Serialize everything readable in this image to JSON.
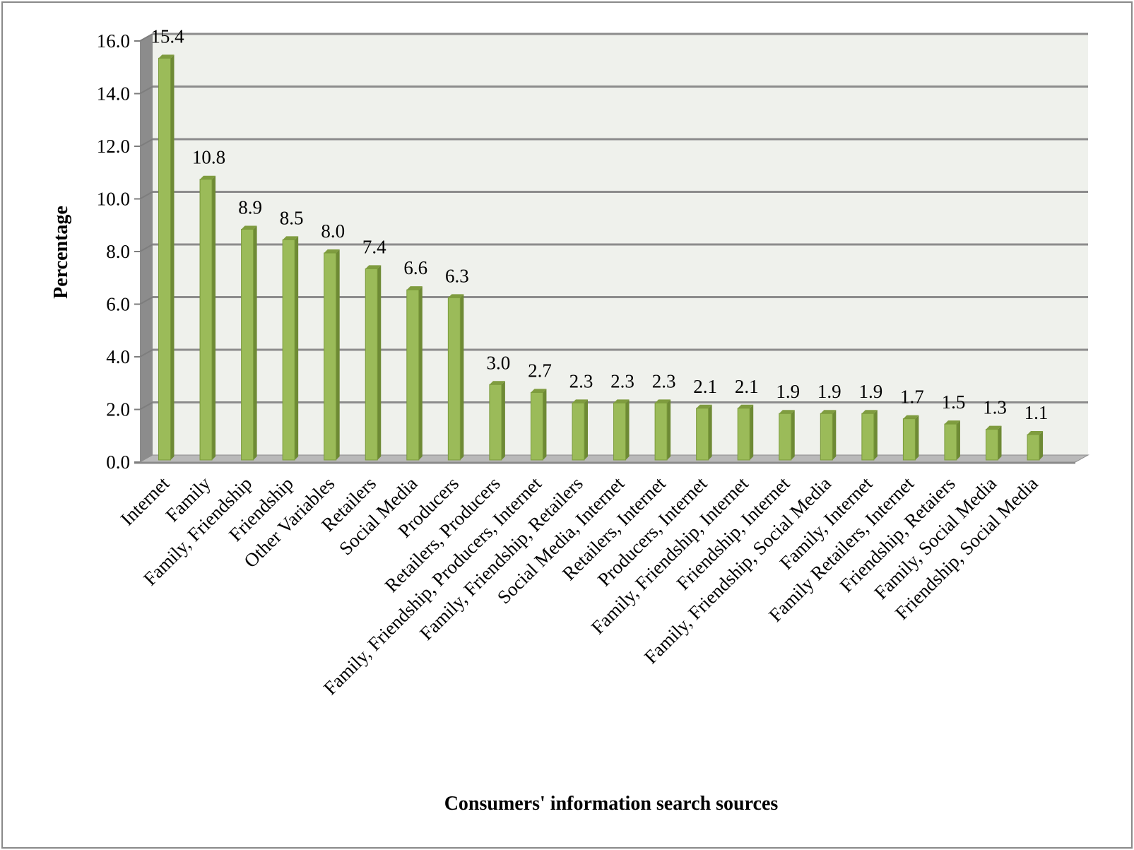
{
  "chart_data": {
    "type": "bar",
    "title": "",
    "xlabel": "Consumers' information search sources",
    "ylabel": "Percentage",
    "ylim": [
      0,
      16
    ],
    "yticks": [
      "0.0",
      "2.0",
      "4.0",
      "6.0",
      "8.0",
      "10.0",
      "12.0",
      "14.0",
      "16.0"
    ],
    "grid": true,
    "legend": null,
    "style": "3d-column",
    "bar_color": "#9bbb59",
    "bar_shadow_color": "#6e8a35",
    "wall_color": "#eff1ec",
    "side_wall_color": "#8c8c8c",
    "categories": [
      "Internet",
      "Family",
      "Family, Friendship",
      "Friendship",
      "Other Variables",
      "Retailers",
      "Social Media",
      "Producers",
      "Retailers, Producers",
      "Family, Friendship, Producers, Internet",
      "Family, Friendship, Retailers",
      "Social Media, Internet",
      "Retailers, Internet",
      "Producers, Internet",
      "Family, Friendship, Internet",
      "Friendship, Internet",
      "Family, Friendship, Social Media",
      "Family, Internet",
      "Family Retailers, Internet",
      "Friendship, Retaiers",
      "Family, Social Media",
      "Friendship, Social Media"
    ],
    "values": [
      15.4,
      10.8,
      8.9,
      8.5,
      8.0,
      7.4,
      6.6,
      6.3,
      3.0,
      2.7,
      2.3,
      2.3,
      2.3,
      2.1,
      2.1,
      1.9,
      1.9,
      1.9,
      1.7,
      1.5,
      1.3,
      1.1
    ],
    "data_labels": [
      "15.4",
      "10.8",
      "8.9",
      "8.5",
      "8.0",
      "7.4",
      "6.6",
      "6.3",
      "3.0",
      "2.7",
      "2.3",
      "2.3",
      "2.3",
      "2.1",
      "2.1",
      "1.9",
      "1.9",
      "1.9",
      "1.7",
      "1.5",
      "1.3",
      "1.1"
    ]
  }
}
